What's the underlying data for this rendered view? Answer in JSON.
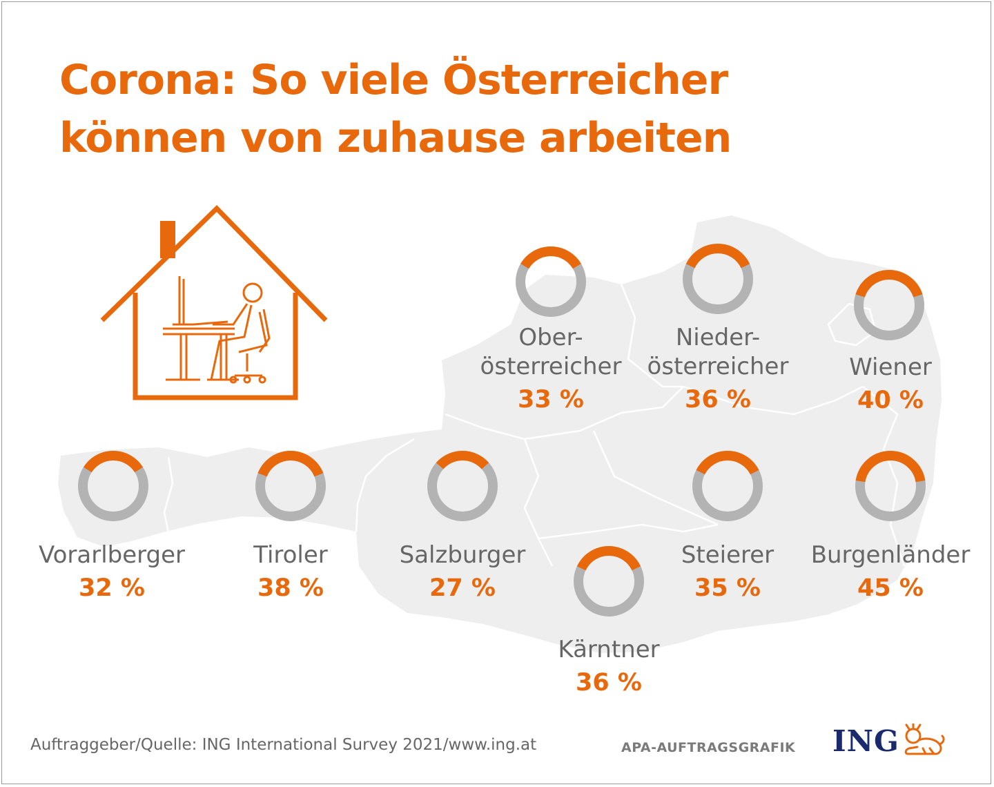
{
  "title": {
    "line1": "Corona: So viele Österreicher",
    "line2": "können von zuhause arbeiten"
  },
  "colors": {
    "accent": "#e8680c",
    "ring_rest": "#b3b3b3",
    "map": "#eeeeee",
    "label": "#666666",
    "logo": "#1a2a6c"
  },
  "icons": [
    "house-home-office-icon",
    "ing-lion-icon"
  ],
  "chart_data": {
    "type": "pie",
    "unit": "%",
    "regions": [
      {
        "label": [
          "Ober-",
          "österreicher"
        ],
        "value": 33,
        "value_label": "33 %"
      },
      {
        "label": [
          "Nieder-",
          "österreicher"
        ],
        "value": 36,
        "value_label": "36 %"
      },
      {
        "label": [
          "Wiener"
        ],
        "value": 40,
        "value_label": "40 %"
      },
      {
        "label": [
          "Vorarlberger"
        ],
        "value": 32,
        "value_label": "32 %"
      },
      {
        "label": [
          "Tiroler"
        ],
        "value": 38,
        "value_label": "38 %"
      },
      {
        "label": [
          "Salzburger"
        ],
        "value": 27,
        "value_label": "27 %"
      },
      {
        "label": [
          "Steierer"
        ],
        "value": 35,
        "value_label": "35 %"
      },
      {
        "label": [
          "Burgenländer"
        ],
        "value": 45,
        "value_label": "45 %"
      },
      {
        "label": [
          "Kärntner"
        ],
        "value": 36,
        "value_label": "36 %"
      }
    ]
  },
  "footer": {
    "source": "Auftraggeber/Quelle: ING International Survey 2021/www.ing.at",
    "apa": "APA-AUFTRAGSGRAFIK",
    "logo_text": "ING"
  }
}
